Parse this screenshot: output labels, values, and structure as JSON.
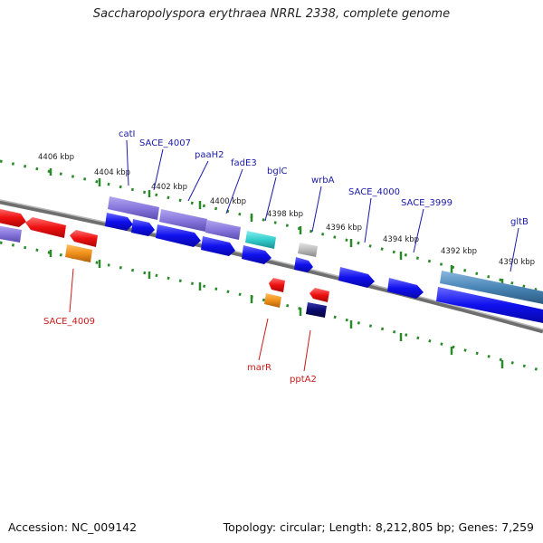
{
  "title": "Saccharopolyspora erythraea NRRL 2338, complete genome",
  "footer": {
    "accession": "Accession: NC_009142",
    "topology": "Topology: circular; Length: 8,212,805 bp; Genes: 7,259"
  },
  "ticks": [
    "4406 kbp",
    "4404 kbp",
    "4402 kbp",
    "4400 kbp",
    "4398 kbp",
    "4396 kbp",
    "4394 kbp",
    "4392 kbp",
    "4390 kbp"
  ],
  "gene_labels_top": [
    "catI",
    "SACE_4007",
    "paaH2",
    "fadE3",
    "bglC",
    "wrbA",
    "SACE_4000",
    "SACE_3999",
    "gltB"
  ],
  "gene_labels_bottom": [
    "SACE_4009",
    "marR",
    "pptA2"
  ],
  "colors": {
    "backbone": "#888888",
    "tick": "#2a8a2a",
    "forward_cds": "#1010ee",
    "reverse_cds": "#ee1010",
    "label_top": "#1a1aaa",
    "label_bottom": "#cc1a1a",
    "misc_feature": "#8877dd",
    "orange": "#f0901a",
    "cyan": "#33cccc",
    "navy": "#0a0a70",
    "grey": "#bbbbbb",
    "steel": "#4a86b8"
  }
}
